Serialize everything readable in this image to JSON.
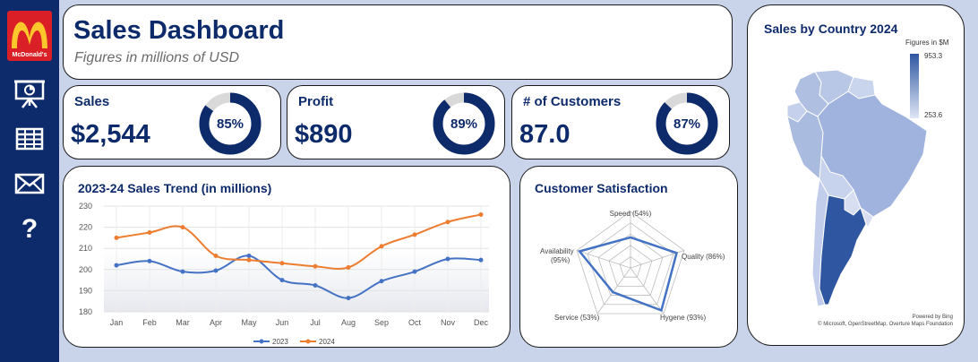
{
  "header": {
    "title": "Sales Dashboard",
    "subtitle": "Figures in millions of USD",
    "brand_text": "McDonald's"
  },
  "sidebar": {
    "items": [
      {
        "icon": "presentation-icon"
      },
      {
        "icon": "table-icon"
      },
      {
        "icon": "mail-icon"
      },
      {
        "icon": "help-icon",
        "glyph": "?"
      }
    ]
  },
  "kpis": [
    {
      "label": "Sales",
      "value": "$2,544",
      "percent": 85,
      "percent_label": "85%"
    },
    {
      "label": "Profit",
      "value": "$890",
      "percent": 89,
      "percent_label": "89%"
    },
    {
      "label": "# of Customers",
      "value": "87.0",
      "percent": 87,
      "percent_label": "87%"
    }
  ],
  "colors": {
    "navy": "#0d2a6b",
    "series_2023": "#4472c4",
    "series_2024": "#ed7d31",
    "donut_track": "#d9d9d9"
  },
  "trend": {
    "title": "2023-24 Sales Trend (in millions)"
  },
  "satisfaction": {
    "title": "Customer Satisfaction"
  },
  "map": {
    "title": "Sales by Country 2024",
    "legend_title": "Figures in $M",
    "legend_max": "953.3",
    "legend_min": "253.6",
    "attribution_line1": "Powered by Bing",
    "attribution_line2": "© Microsoft, OpenStreetMap, Overture Maps Foundation"
  },
  "chart_data": [
    {
      "type": "line",
      "title": "2023-24 Sales Trend (in millions)",
      "categories": [
        "Jan",
        "Feb",
        "Mar",
        "Apr",
        "May",
        "Jun",
        "Jul",
        "Aug",
        "Sep",
        "Oct",
        "Nov",
        "Dec"
      ],
      "series": [
        {
          "name": "2023",
          "values": [
            202,
            204,
            199,
            199.5,
            206.5,
            195,
            192.5,
            186.5,
            194.5,
            199,
            205,
            204.5
          ]
        },
        {
          "name": "2024",
          "values": [
            215,
            217.5,
            220,
            206.5,
            204.5,
            203,
            201.5,
            201,
            211,
            216.5,
            222.5,
            226
          ]
        }
      ],
      "yticks": [
        "180",
        "190",
        "200",
        "210",
        "220",
        "230"
      ],
      "ylim": [
        180,
        230
      ],
      "legend": "bottom"
    },
    {
      "type": "radar",
      "title": "Customer Satisfaction",
      "axes": [
        {
          "label": "Speed (54%)",
          "value": 54
        },
        {
          "label": "Quality (86%)",
          "value": 86
        },
        {
          "label": "Hygene (93%)",
          "value": 93
        },
        {
          "label": "Service (53%)",
          "value": 53
        },
        {
          "label": "Availability (95%)",
          "value": 95
        }
      ],
      "rmax": 100,
      "rings": 5
    }
  ]
}
